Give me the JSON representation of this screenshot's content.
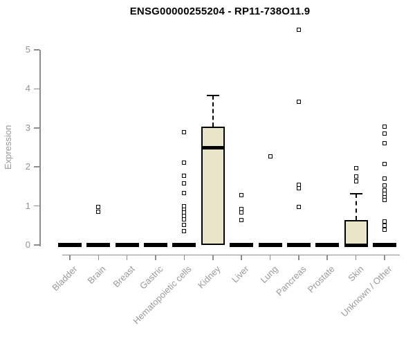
{
  "header": {
    "title": "ENSG00000255204 - RP11-738O11.9"
  },
  "chart_data": {
    "type": "boxplot",
    "title": "ENSG00000255204 - RP11-738O11.9",
    "xlabel": "",
    "ylabel": "Expression",
    "ylim": [
      0,
      5.6
    ],
    "yticks": [
      0,
      1,
      2,
      3,
      4,
      5
    ],
    "grid": false,
    "legend": "none",
    "categories": [
      "Bladder",
      "Brain",
      "Breast",
      "Gastric",
      "Hematopoietic cells",
      "Kidney",
      "Liver",
      "Lung",
      "Pancreas",
      "Prostate",
      "Skin",
      "Unknown / Other"
    ],
    "boxes": [
      {
        "category": "Bladder",
        "q1": 0,
        "median": 0,
        "q3": 0,
        "whisker_low": 0,
        "whisker_high": 0,
        "outliers": []
      },
      {
        "category": "Brain",
        "q1": 0,
        "median": 0,
        "q3": 0,
        "whisker_low": 0,
        "whisker_high": 0,
        "outliers": [
          0.98,
          0.85
        ]
      },
      {
        "category": "Breast",
        "q1": 0,
        "median": 0,
        "q3": 0,
        "whisker_low": 0,
        "whisker_high": 0,
        "outliers": []
      },
      {
        "category": "Gastric",
        "q1": 0,
        "median": 0,
        "q3": 0,
        "whisker_low": 0,
        "whisker_high": 0,
        "outliers": []
      },
      {
        "category": "Hematopoietic cells",
        "q1": 0,
        "median": 0,
        "q3": 0,
        "whisker_low": 0,
        "whisker_high": 0,
        "outliers": [
          2.89,
          2.11,
          1.77,
          1.58,
          1.33,
          0.99,
          0.91,
          0.83,
          0.75,
          0.66,
          0.51,
          0.35
        ]
      },
      {
        "category": "Kidney",
        "q1": 0,
        "median": 2.5,
        "q3": 3.04,
        "whisker_low": 0,
        "whisker_high": 3.83,
        "outliers": []
      },
      {
        "category": "Liver",
        "q1": 0,
        "median": 0,
        "q3": 0,
        "whisker_low": 0,
        "whisker_high": 0,
        "outliers": [
          1.28,
          0.92,
          0.83,
          0.64
        ]
      },
      {
        "category": "Lung",
        "q1": 0,
        "median": 0,
        "q3": 0,
        "whisker_low": 0,
        "whisker_high": 0,
        "outliers": [
          2.27
        ]
      },
      {
        "category": "Pancreas",
        "q1": 0,
        "median": 0,
        "q3": 0,
        "whisker_low": 0,
        "whisker_high": 0,
        "outliers": [
          5.52,
          3.67,
          1.54,
          1.45,
          0.98
        ]
      },
      {
        "category": "Prostate",
        "q1": 0,
        "median": 0,
        "q3": 0,
        "whisker_low": 0,
        "whisker_high": 0,
        "outliers": []
      },
      {
        "category": "Skin",
        "q1": 0,
        "median": 0,
        "q3": 0.63,
        "whisker_low": 0,
        "whisker_high": 1.31,
        "outliers": [
          1.97,
          1.76,
          1.63
        ]
      },
      {
        "category": "Unknown / Other",
        "q1": 0,
        "median": 0,
        "q3": 0,
        "whisker_low": 0,
        "whisker_high": 0,
        "outliers": [
          3.03,
          2.85,
          2.61,
          2.07,
          1.7,
          1.52,
          1.4,
          1.31,
          1.23,
          1.15,
          0.6,
          0.5,
          0.39
        ]
      }
    ],
    "colors": {
      "box_fill": "#EAE4C8",
      "box_border": "#000000",
      "median": "#000000",
      "axis": "#8C8C8C",
      "tick_label": "#8E9299",
      "category_label": "#999999",
      "title": "#000000",
      "background": "#FFFFFF"
    }
  }
}
